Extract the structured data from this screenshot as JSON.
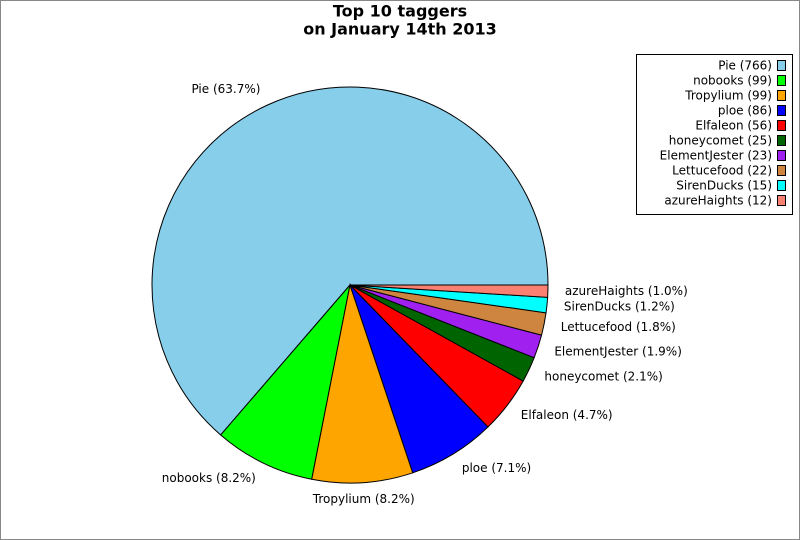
{
  "chart_data": {
    "type": "pie",
    "title": "Top 10 taggers",
    "subtitle": "on January 14th 2013",
    "categories": [
      "Pie",
      "nobooks",
      "Tropylium",
      "ploe",
      "Elfaleon",
      "honeycomet",
      "ElementJester",
      "Lettucefood",
      "SirenDucks",
      "azureHaights"
    ],
    "values": [
      766,
      99,
      99,
      86,
      56,
      25,
      23,
      22,
      15,
      12
    ],
    "legend_labels": [
      "Pie (766)",
      "nobooks (99)",
      "Tropylium (99)",
      "ploe (86)",
      "Elfaleon (56)",
      "honeycomet (25)",
      "ElementJester (23)",
      "Lettucefood (22)",
      "SirenDucks (15)",
      "azureHaights (12)"
    ],
    "slice_labels": [
      "Pie (63.7%)",
      "nobooks (8.2%)",
      "Tropylium (8.2%)",
      "ploe (7.1%)",
      "Elfaleon (4.7%)",
      "honeycomet (2.1%)",
      "ElementJester (1.9%)",
      "Lettucefood (1.8%)",
      "SirenDucks (1.2%)",
      "azureHaights (1.0%)"
    ],
    "colors": [
      "#87ceeb",
      "#00ff00",
      "#ffa500",
      "#0000ff",
      "#ff0000",
      "#006400",
      "#a020f0",
      "#cd853f",
      "#00ffff",
      "#fa8072"
    ],
    "legend_position": "upper right"
  }
}
